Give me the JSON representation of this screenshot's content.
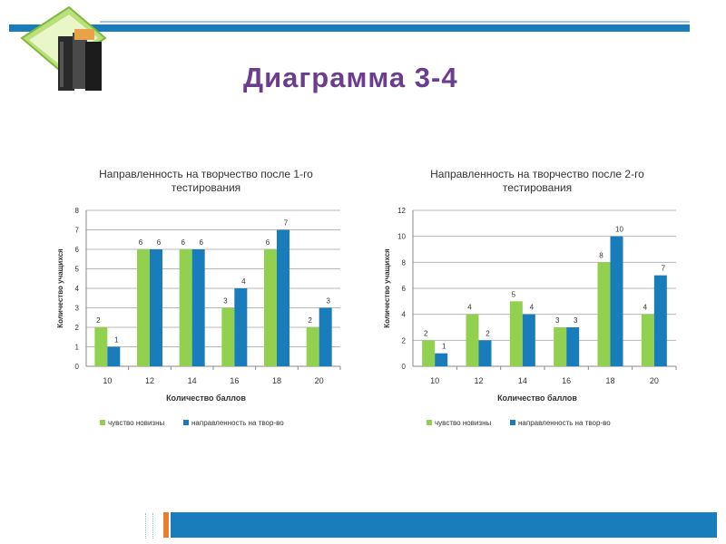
{
  "slide": {
    "title": "Диаграмма 3-4"
  },
  "colors": {
    "accent_bar": "#1a7dbb",
    "title": "#6b3d8f",
    "series_green": "#92d050",
    "series_blue": "#1a7dbb",
    "bottom_accent": "#e87f2a"
  },
  "icons": {
    "logo": "books-icon"
  },
  "chart_data": [
    {
      "type": "bar",
      "title": "Направленность на творчество после 1-го тестирования",
      "xlabel": "Количество баллов",
      "ylabel": "Количество учащихся",
      "categories": [
        "10",
        "12",
        "14",
        "16",
        "18",
        "20"
      ],
      "ylim": [
        0,
        8
      ],
      "yticks": [
        0,
        1,
        2,
        3,
        4,
        5,
        6,
        7,
        8
      ],
      "grid": true,
      "legend": "bottom",
      "series": [
        {
          "name": "чувство новизны",
          "color": "#92d050",
          "values": [
            2,
            6,
            6,
            3,
            6,
            2
          ]
        },
        {
          "name": "направленность на твор-во",
          "color": "#1a7dbb",
          "values": [
            1,
            6,
            6,
            4,
            7,
            3
          ]
        }
      ]
    },
    {
      "type": "bar",
      "title": "Направленность на творчество после 2-го тестирования",
      "xlabel": "Количество баллов",
      "ylabel": "Количество учащихся",
      "categories": [
        "10",
        "12",
        "14",
        "16",
        "18",
        "20"
      ],
      "ylim": [
        0,
        12
      ],
      "yticks": [
        0,
        2,
        4,
        6,
        8,
        10,
        12
      ],
      "grid": true,
      "legend": "bottom",
      "series": [
        {
          "name": "чувство новизны",
          "color": "#92d050",
          "values": [
            2,
            4,
            5,
            3,
            8,
            4
          ]
        },
        {
          "name": "направленность на твор-во",
          "color": "#1a7dbb",
          "values": [
            1,
            2,
            4,
            3,
            10,
            7
          ]
        }
      ]
    }
  ]
}
